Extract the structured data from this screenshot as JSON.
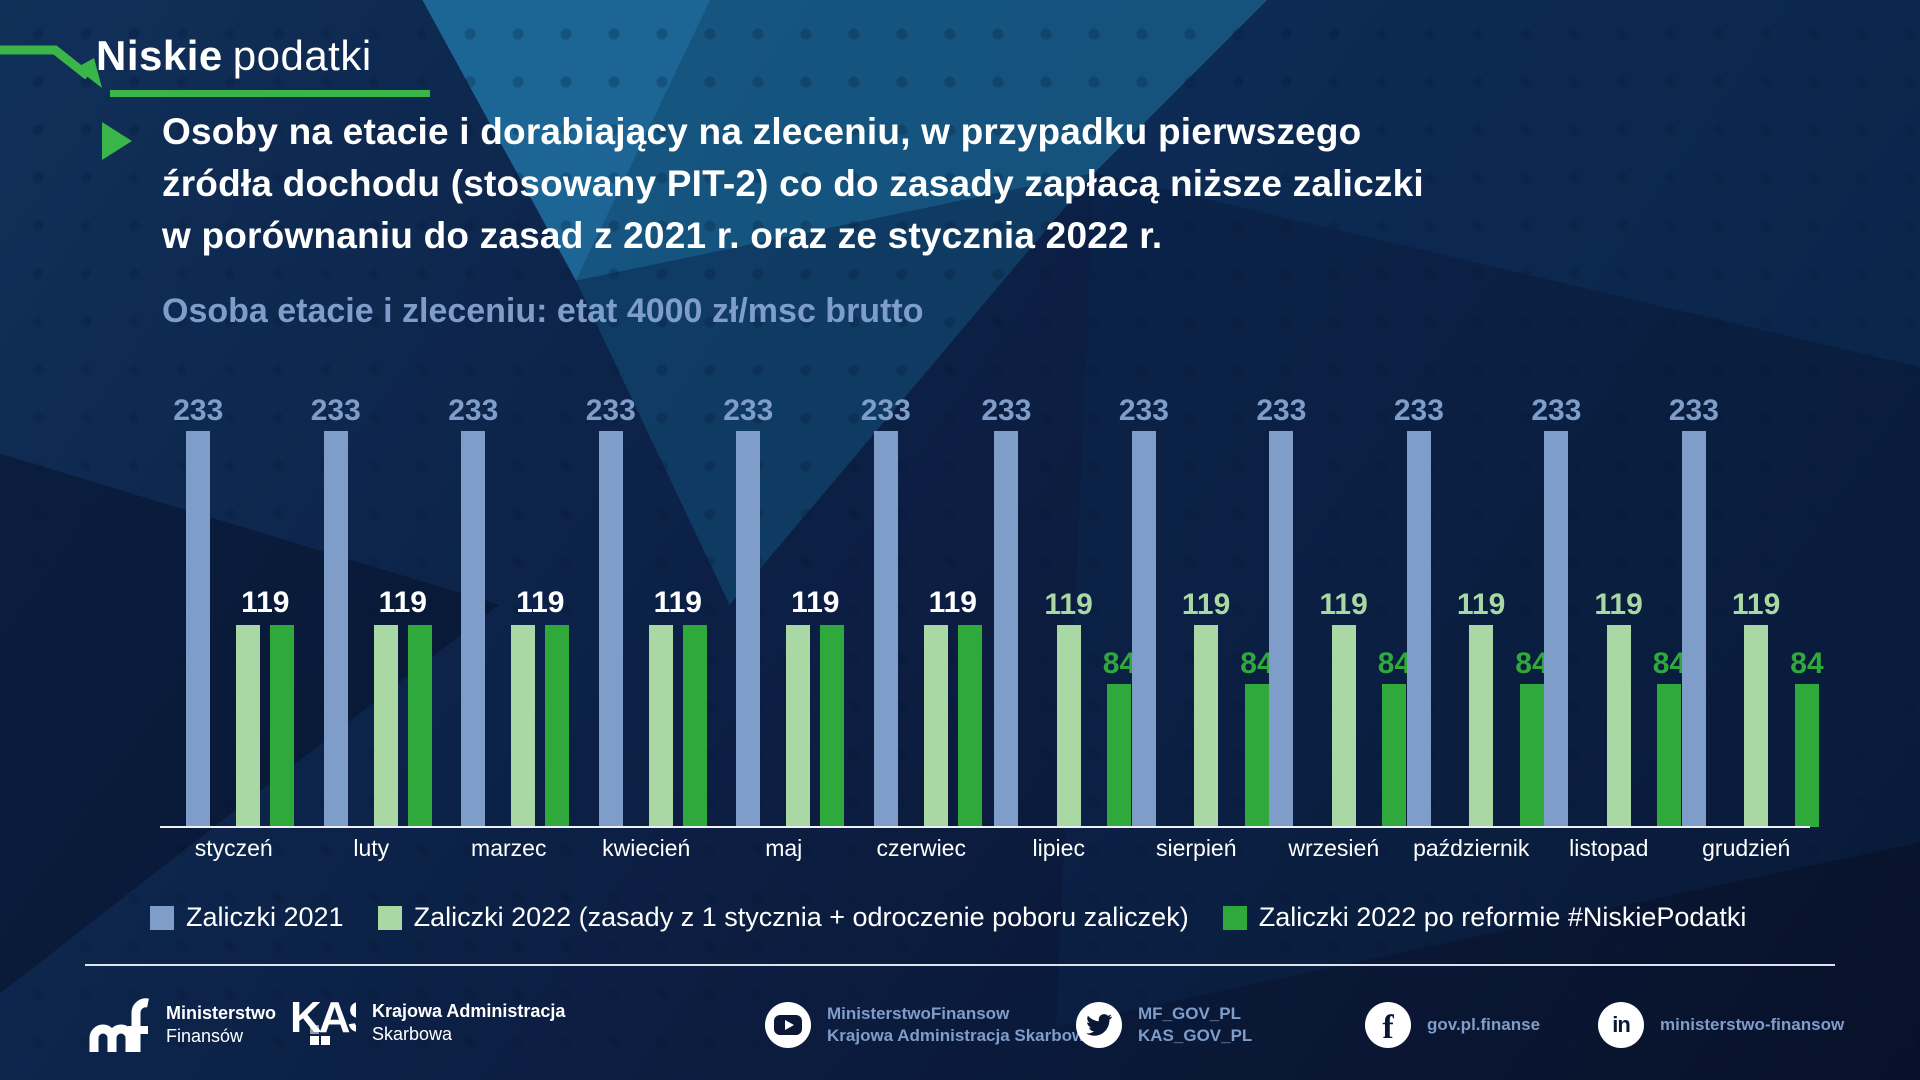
{
  "brand": {
    "logo_bold": "Niskie",
    "logo_light": "podatki"
  },
  "heading": {
    "lines": [
      "Osoby na etacie i dorabiający na zleceniu, w przypadku pierwszego",
      "źródła dochodu (stosowany PIT-2) co do zasady zapłacą niższe zaliczki",
      "w porównaniu do zasad z 2021 r. oraz ze stycznia 2022 r."
    ]
  },
  "subtitle": "Osoba etacie i zleceniu: etat 4000 zł/msc brutto",
  "chart_data": {
    "type": "bar",
    "title": "Osoba etacie i zleceniu: etat 4000 zł/msc brutto",
    "categories": [
      "styczeń",
      "luty",
      "marzec",
      "kwiecień",
      "maj",
      "czerwiec",
      "lipiec",
      "sierpień",
      "wrzesień",
      "październik",
      "listopad",
      "grudzień"
    ],
    "series": [
      {
        "name": "Zaliczki 2021",
        "color": "#7f9dc9",
        "values": [
          233,
          233,
          233,
          233,
          233,
          233,
          233,
          233,
          233,
          233,
          233,
          233
        ]
      },
      {
        "name": "Zaliczki 2022 (zasady z 1 stycznia + odroczenie poboru zaliczek)",
        "color": "#a9d8a4",
        "values": [
          119,
          119,
          119,
          119,
          119,
          119,
          119,
          119,
          119,
          119,
          119,
          119
        ]
      },
      {
        "name": "Zaliczki 2022 po reformie #NiskiePodatki",
        "color": "#2fa93c",
        "values": [
          119,
          119,
          119,
          119,
          119,
          119,
          84,
          84,
          84,
          84,
          84,
          84
        ]
      }
    ],
    "ylim": [
      0,
      240
    ],
    "grid": false,
    "legend_position": "bottom",
    "value_labels": true,
    "merged_label_color": "#ffffff"
  },
  "footer": {
    "orgs": [
      {
        "icon": "mf-logo",
        "line1": "Ministerstwo",
        "line2": "Finansów"
      },
      {
        "icon": "kas-logo",
        "line1": "Krajowa Administracja",
        "line2": "Skarbowa"
      }
    ],
    "socials": [
      {
        "network": "youtube",
        "line1": "MinisterstwoFinansow",
        "line2": "Krajowa Administracja Skarbowa"
      },
      {
        "network": "twitter",
        "line1": "MF_GOV_PL",
        "line2": "KAS_GOV_PL"
      },
      {
        "network": "facebook",
        "line1": "gov.pl.finanse",
        "line2": ""
      },
      {
        "network": "linkedin",
        "line1": "ministerstwo-finansow",
        "line2": ""
      }
    ]
  },
  "colors": {
    "accent_green": "#3ab54a",
    "bar_blue": "#7f9dc9",
    "bar_light_green": "#a9d8a4",
    "bar_dark_green": "#2fa93c",
    "subtitle_blue": "#7f9dc9",
    "background_navy": "#0a1734"
  }
}
